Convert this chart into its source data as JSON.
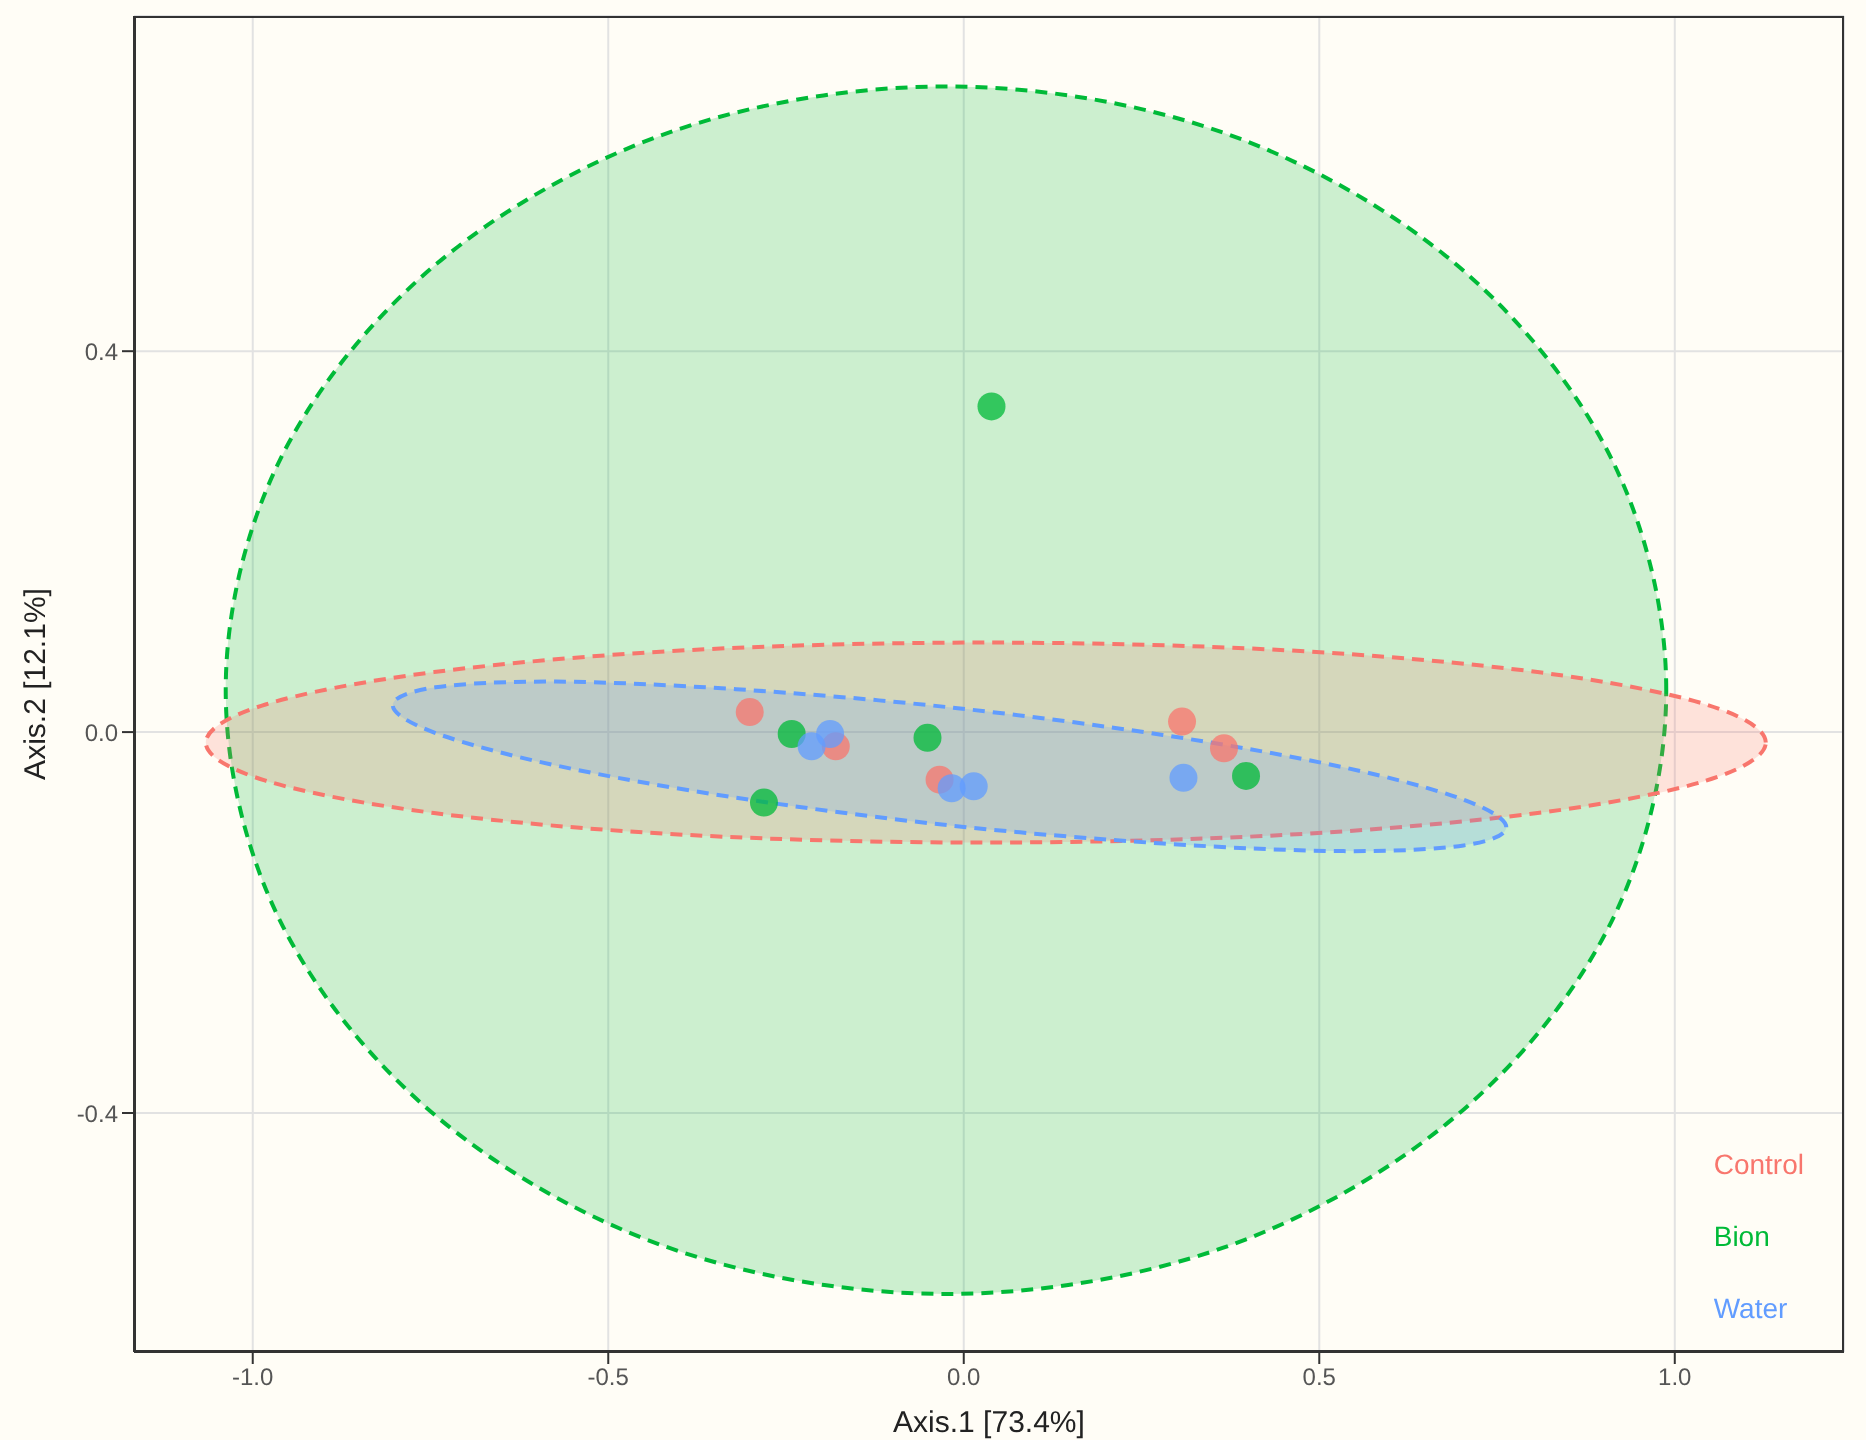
{
  "chart_data": {
    "type": "scatter",
    "xlabel": "Axis.1   [73.4%]",
    "ylabel": "Axis.2   [12.1%]",
    "xlim": [
      -1.167,
      1.238
    ],
    "ylim": [
      -0.651,
      0.752
    ],
    "xticks": [
      {
        "value": -1,
        "label": "-1.0"
      },
      {
        "value": -0.5,
        "label": "-0.5"
      },
      {
        "value": 0,
        "label": "0.0"
      },
      {
        "value": 0.5,
        "label": "0.5"
      },
      {
        "value": 1,
        "label": "1.0"
      }
    ],
    "yticks": [
      {
        "value": -0.4,
        "label": "-0.4"
      },
      {
        "value": 0,
        "label": "0.0"
      },
      {
        "value": 0.4,
        "label": "0.4"
      }
    ],
    "grid": true,
    "legend": "bottom right",
    "marker": "circle",
    "series": [
      {
        "type": "area",
        "line_style": "dashed",
        "marker": "none",
        "color": "#00ba38",
        "x": [
          0.988,
          0.911,
          0.691,
          0.363,
          -0.025,
          -0.413,
          -0.741,
          -0.961,
          -1.038,
          -0.961,
          -0.741,
          -0.413,
          -0.025,
          0.363,
          0.691,
          0.911,
          0.988
        ],
        "values": [
          0.044,
          0.287,
          0.492,
          0.63,
          0.678,
          0.63,
          0.492,
          0.287,
          0.044,
          -0.199,
          -0.404,
          -0.542,
          -0.59,
          -0.542,
          -0.404,
          -0.199,
          0.044
        ]
      },
      {
        "type": "area",
        "line_style": "dashed",
        "marker": "none",
        "color": "#f8766d",
        "x": [
          1.128,
          1.044,
          0.807,
          0.451,
          0.031,
          -0.389,
          -0.745,
          -0.982,
          -1.066,
          -0.982,
          -0.745,
          -0.389,
          0.031,
          0.451,
          0.807,
          1.044,
          1.128
        ],
        "values": [
          -0.011,
          0.029,
          0.063,
          0.086,
          0.094,
          0.086,
          0.063,
          0.029,
          -0.011,
          -0.051,
          -0.085,
          -0.108,
          -0.116,
          -0.108,
          -0.085,
          -0.051,
          -0.011
        ]
      },
      {
        "type": "area",
        "line_style": "dashed",
        "marker": "none",
        "color": "#619cff",
        "x": [
          0.763,
          0.703,
          0.534,
          0.28,
          -0.02,
          -0.32,
          -0.574,
          -0.743,
          -0.803,
          -0.743,
          -0.574,
          -0.32,
          -0.02,
          0.28,
          0.534,
          0.703,
          0.763
        ],
        "values": [
          -0.1,
          -0.071,
          -0.037,
          -0.003,
          0.026,
          0.045,
          0.053,
          0.047,
          0.028,
          -0.001,
          -0.035,
          -0.069,
          -0.098,
          -0.117,
          -0.125,
          -0.119,
          -0.1
        ]
      },
      {
        "name": "Control",
        "color": "#f8766d",
        "x": [
          -0.301,
          -0.18,
          -0.034,
          0.307,
          0.366
        ],
        "values": [
          0.021,
          -0.015,
          -0.05,
          0.011,
          -0.017
        ]
      },
      {
        "name": "Bion",
        "color": "#00ba38",
        "x": [
          -0.242,
          -0.281,
          -0.051,
          0.397,
          0.039
        ],
        "values": [
          -0.002,
          -0.074,
          -0.006,
          -0.046,
          0.342
        ]
      },
      {
        "name": "Water",
        "color": "#619cff",
        "x": [
          -0.214,
          -0.188,
          -0.017,
          0.014,
          0.309
        ],
        "values": [
          -0.015,
          -0.002,
          -0.059,
          -0.057,
          -0.048
        ]
      }
    ]
  }
}
